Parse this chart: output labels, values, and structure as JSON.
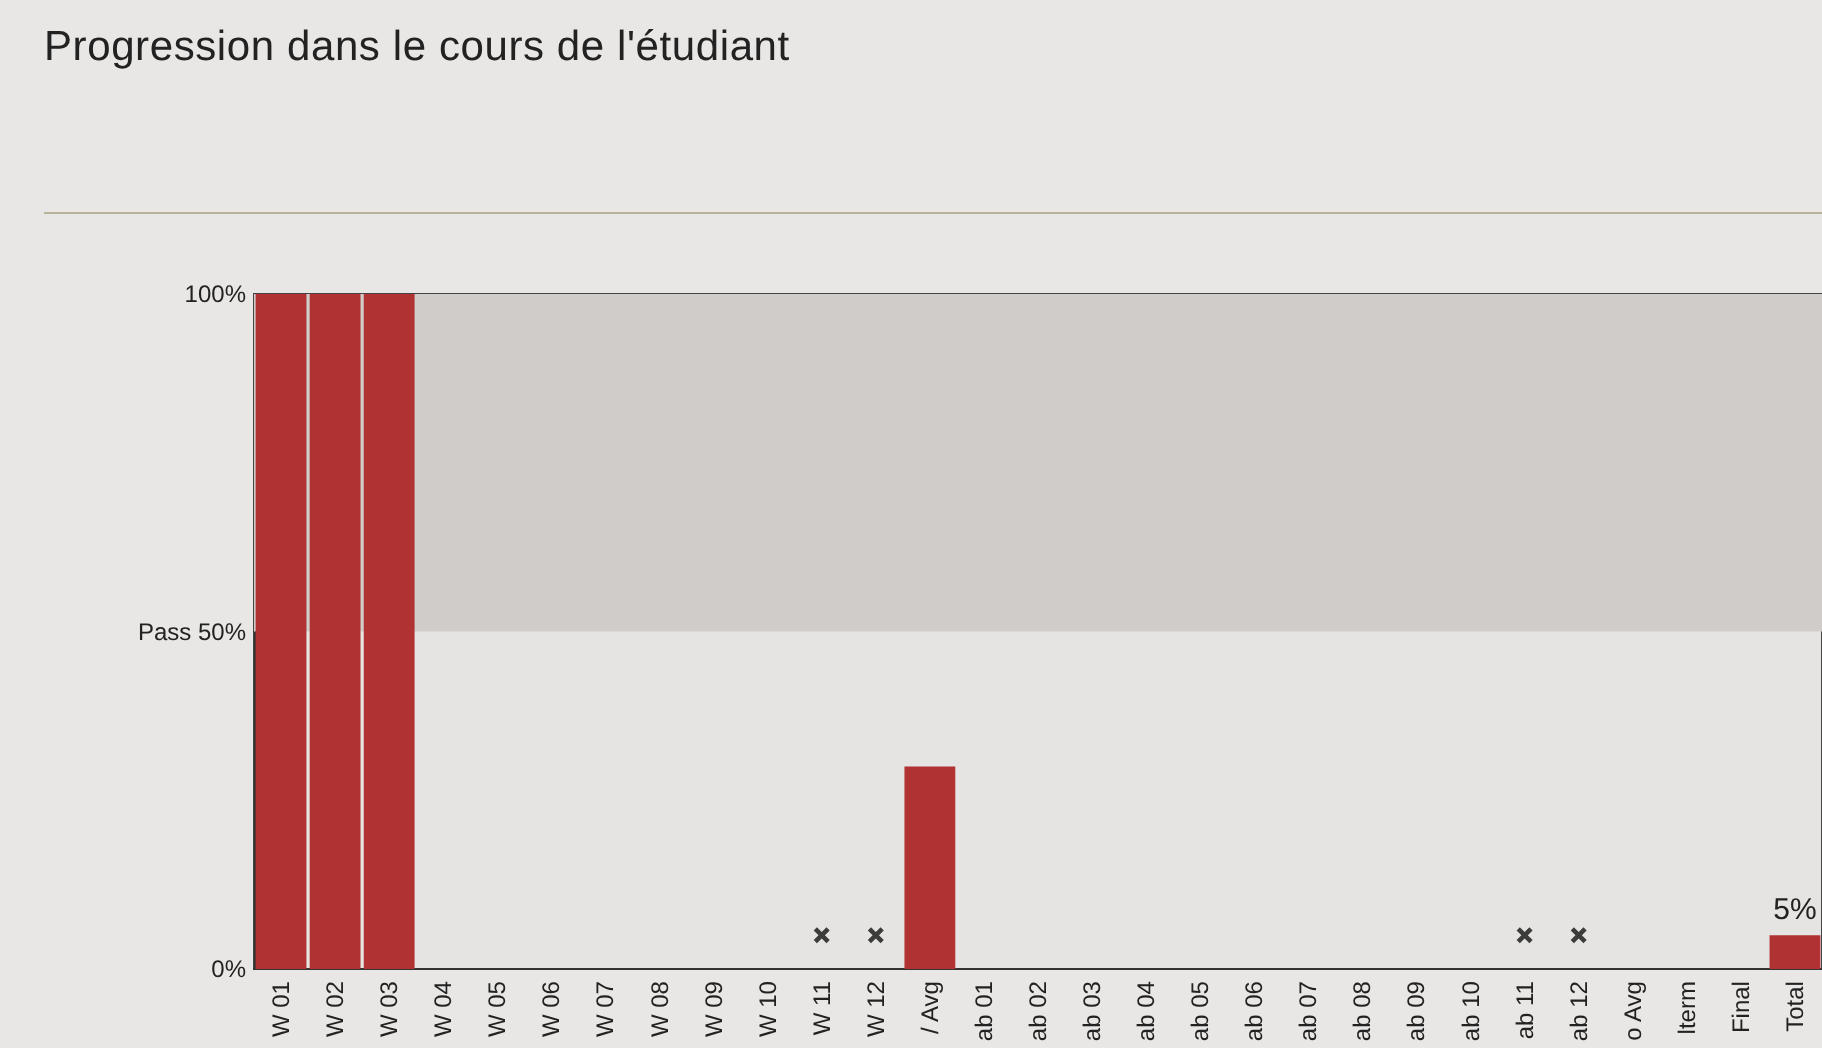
{
  "chart_data": {
    "type": "bar",
    "title": "Progression dans le cours de l'étudiant",
    "categories": [
      "W 01",
      "W 02",
      "W 03",
      "W 04",
      "W 05",
      "W 06",
      "W 07",
      "W 08",
      "W 09",
      "W 10",
      "W 11",
      "W 12",
      "/ Avg",
      "ab 01",
      "ab 02",
      "ab 03",
      "ab 04",
      "ab 05",
      "ab 06",
      "ab 07",
      "ab 08",
      "ab 09",
      "ab 10",
      "ab 11",
      "ab 12",
      "o Avg",
      "lterm",
      "Final",
      "Total"
    ],
    "series": [
      {
        "color": "#b03232",
        "values": [
          100,
          100,
          100,
          0,
          0,
          0,
          0,
          0,
          0,
          0,
          0,
          0,
          30,
          0,
          0,
          0,
          0,
          0,
          0,
          0,
          0,
          0,
          0,
          0,
          0,
          0,
          0,
          0,
          5
        ],
        "value_labels": [
          null,
          null,
          null,
          null,
          null,
          null,
          null,
          null,
          null,
          null,
          null,
          null,
          null,
          null,
          null,
          null,
          null,
          null,
          null,
          null,
          null,
          null,
          null,
          null,
          null,
          null,
          null,
          null,
          "5%"
        ]
      },
      {
        "type": "scatter",
        "color": "#111111",
        "x": [
          "W 11",
          "W 12",
          "ab 11",
          "ab 12"
        ],
        "values": [
          5,
          5,
          5,
          5
        ]
      }
    ],
    "ylim": [
      0,
      100
    ],
    "yticks": [
      {
        "value": 0,
        "label": "0%"
      },
      {
        "value": 50,
        "label": "Pass 50%"
      },
      {
        "value": 100,
        "label": "100%"
      }
    ],
    "bands": [
      {
        "axis": "y",
        "from": 50,
        "to": 100,
        "label": null,
        "color": "#d0ccc9"
      }
    ],
    "marker": "cross",
    "grid": false
  }
}
